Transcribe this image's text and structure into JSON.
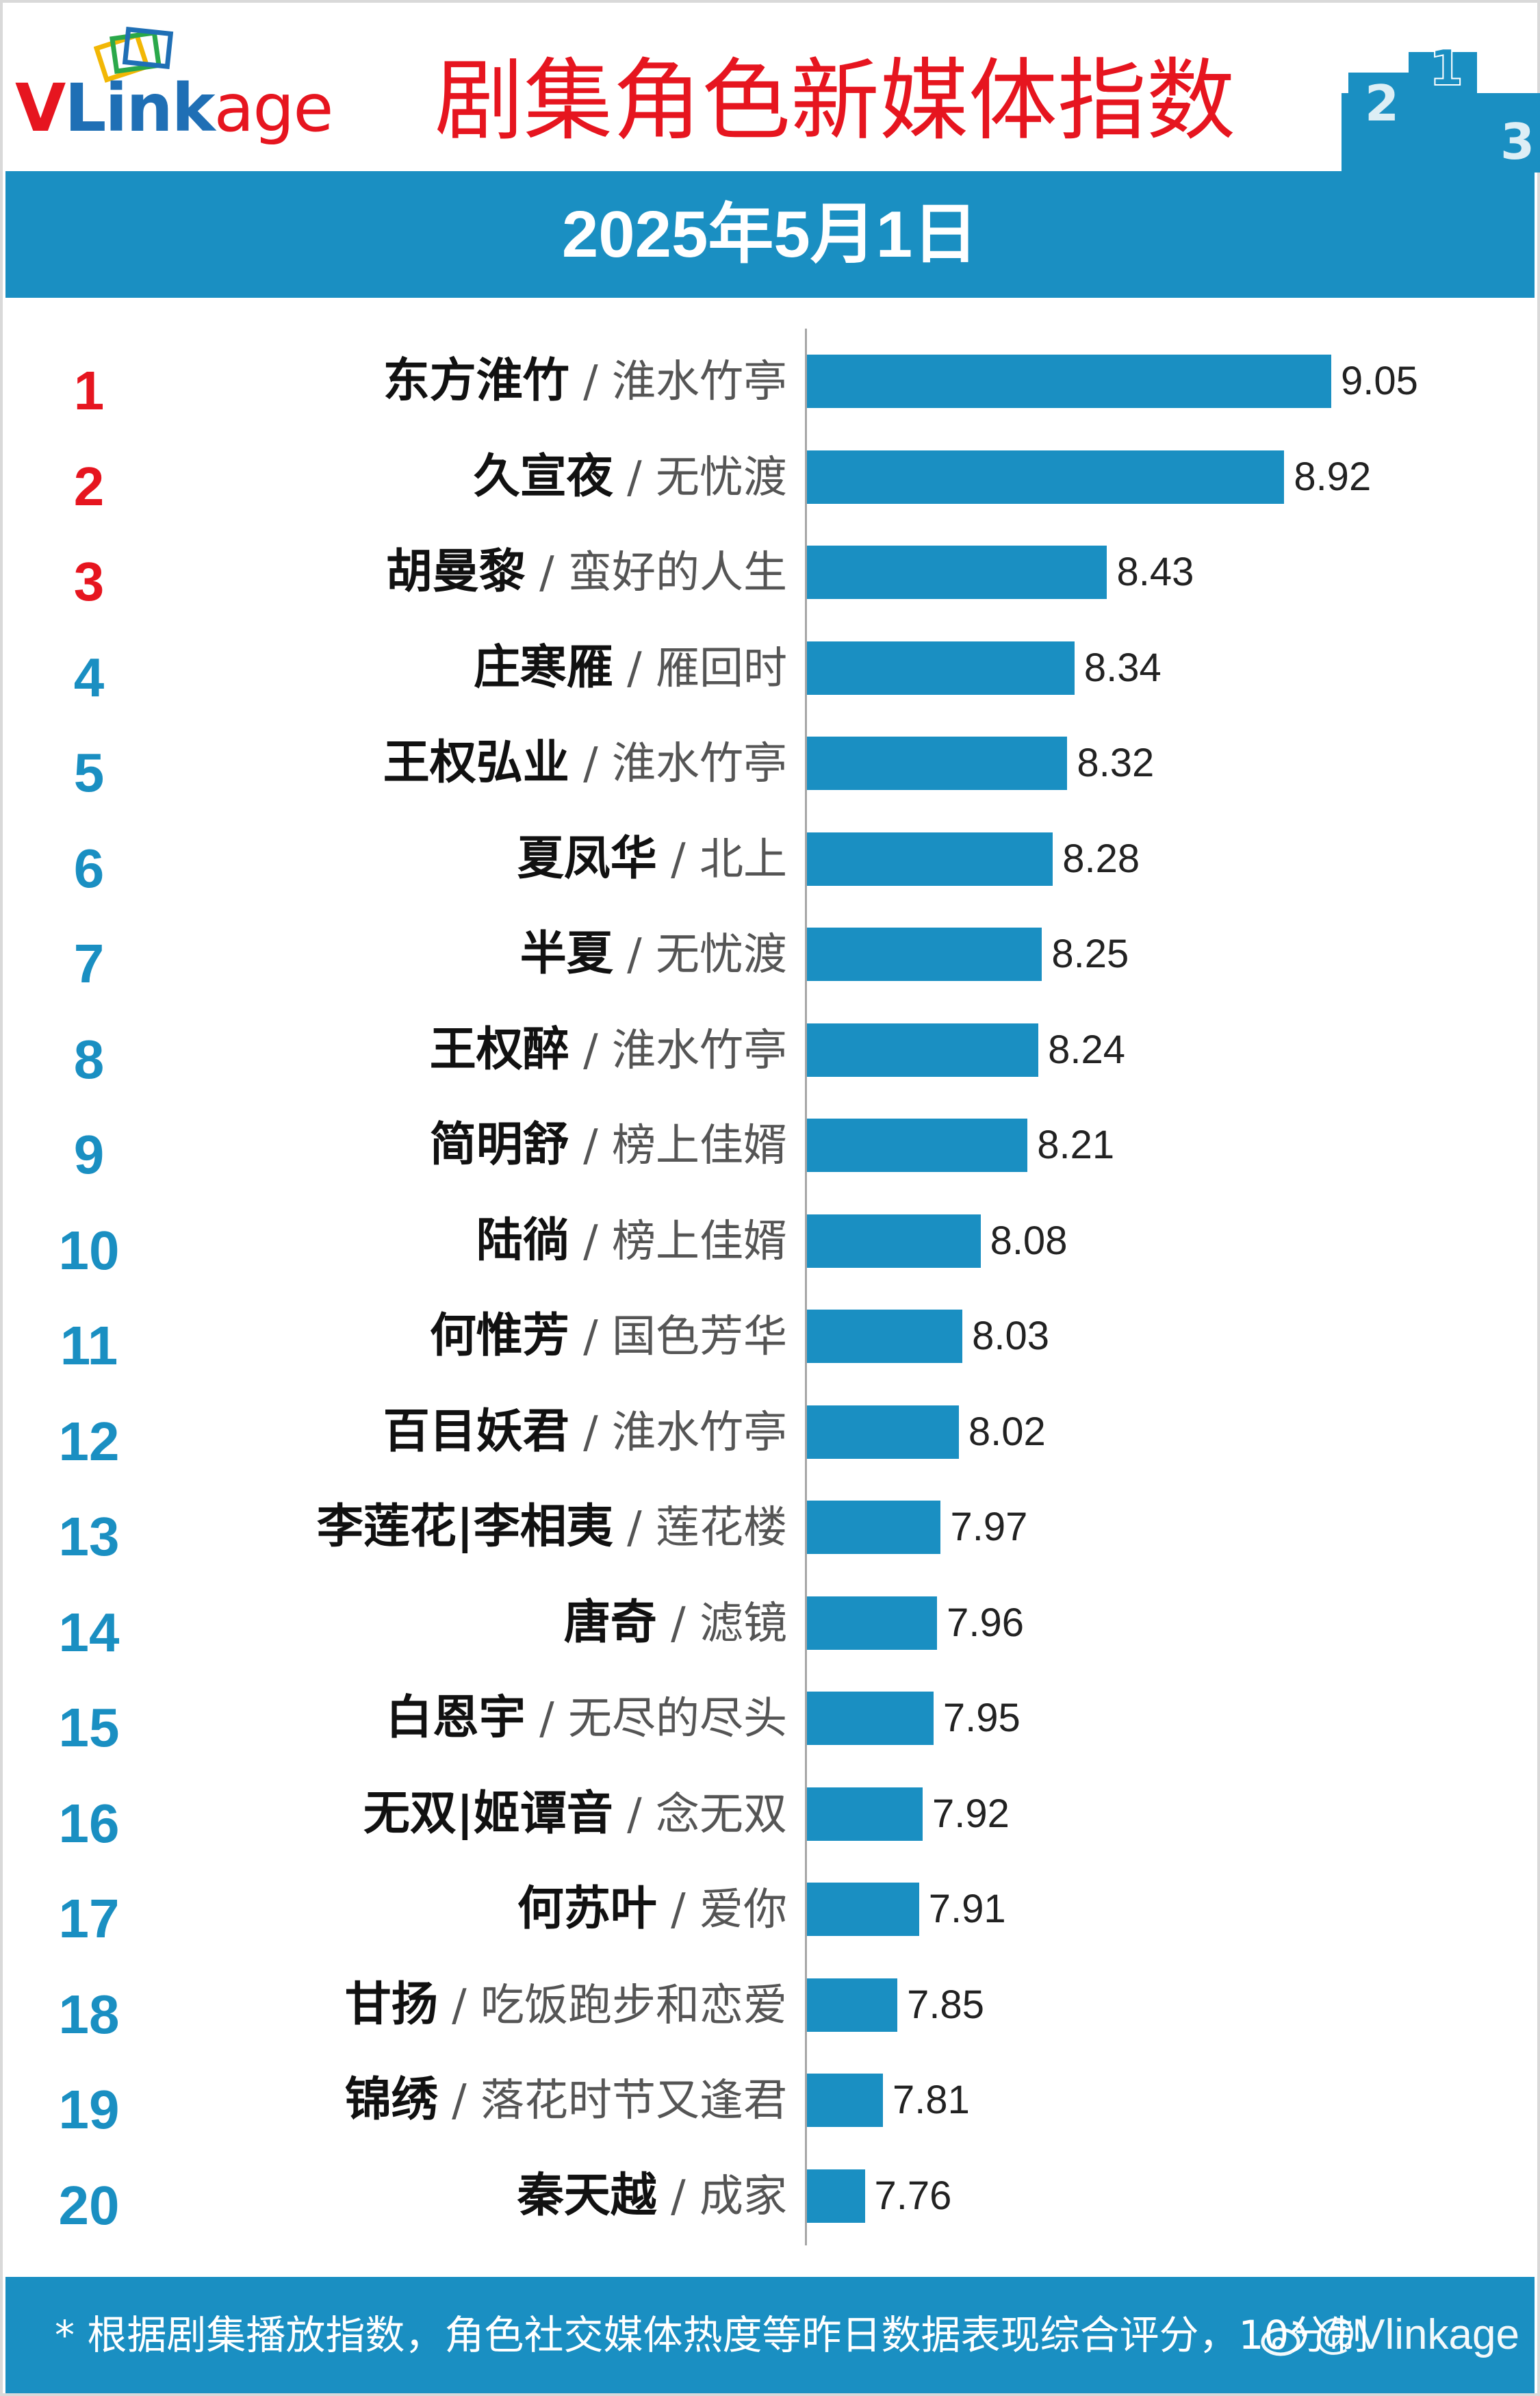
{
  "header": {
    "logo_text": "VLinkage",
    "title": "剧集角色新媒体指数",
    "date": "2025年5月1日"
  },
  "footer": {
    "note": "* 根据剧集播放指数，角色社交媒体热度等昨日数据表现综合评分，10分制",
    "watermark": "@Vlinkage"
  },
  "colors": {
    "bar": "#1a8fc2",
    "top_rank": "#e6151f",
    "other_rank": "#1a8fc2",
    "title": "#e6151f"
  },
  "chart_data": {
    "type": "bar",
    "orientation": "horizontal",
    "title": "剧集角色新媒体指数",
    "subtitle": "2025年5月1日",
    "xlabel": "",
    "ylabel": "",
    "grid": false,
    "rows": [
      {
        "rank": "1",
        "character": "东方淮竹",
        "show": "淮水竹亭",
        "value": 9.05
      },
      {
        "rank": "2",
        "character": "久宣夜",
        "show": "无忧渡",
        "value": 8.92
      },
      {
        "rank": "3",
        "character": "胡曼黎",
        "show": "蛮好的人生",
        "value": 8.43
      },
      {
        "rank": "4",
        "character": "庄寒雁",
        "show": "雁回时",
        "value": 8.34
      },
      {
        "rank": "5",
        "character": "王权弘业",
        "show": "淮水竹亭",
        "value": 8.32
      },
      {
        "rank": "6",
        "character": "夏凤华",
        "show": "北上",
        "value": 8.28
      },
      {
        "rank": "7",
        "character": "半夏",
        "show": "无忧渡",
        "value": 8.25
      },
      {
        "rank": "8",
        "character": "王权醉",
        "show": "淮水竹亭",
        "value": 8.24
      },
      {
        "rank": "9",
        "character": "简明舒",
        "show": "榜上佳婿",
        "value": 8.21
      },
      {
        "rank": "10",
        "character": "陆徜",
        "show": "榜上佳婿",
        "value": 8.08
      },
      {
        "rank": "11",
        "character": "何惟芳",
        "show": "国色芳华",
        "value": 8.03
      },
      {
        "rank": "12",
        "character": "百目妖君",
        "show": "淮水竹亭",
        "value": 8.02
      },
      {
        "rank": "13",
        "character": "李莲花|李相夷",
        "show": "莲花楼",
        "value": 7.97
      },
      {
        "rank": "14",
        "character": "唐奇",
        "show": "滤镜",
        "value": 7.96
      },
      {
        "rank": "15",
        "character": "白恩宇",
        "show": "无尽的尽头",
        "value": 7.95
      },
      {
        "rank": "16",
        "character": "无双|姬谭音",
        "show": "念无双",
        "value": 7.92
      },
      {
        "rank": "17",
        "character": "何苏叶",
        "show": "爱你",
        "value": 7.91
      },
      {
        "rank": "18",
        "character": "甘扬",
        "show": "吃饭跑步和恋爱",
        "value": 7.85
      },
      {
        "rank": "19",
        "character": "锦绣",
        "show": "落花时节又逢君",
        "value": 7.81
      },
      {
        "rank": "20",
        "character": "秦天越",
        "show": "成家",
        "value": 7.76
      }
    ],
    "bar_baseline": 7.6,
    "bar_max": 9.05,
    "separator": "/"
  }
}
